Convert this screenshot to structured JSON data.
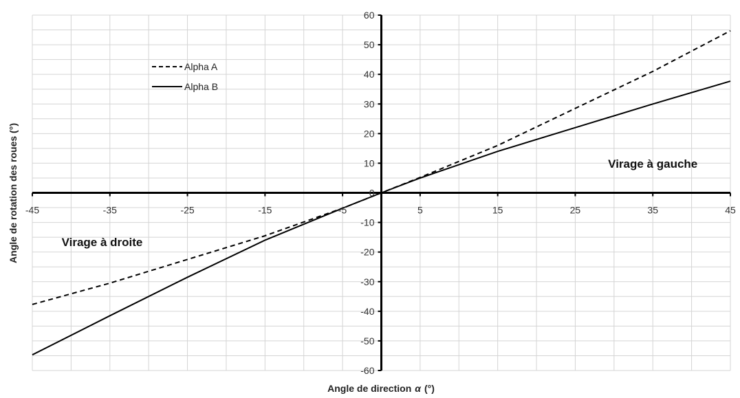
{
  "chart_data": {
    "type": "line",
    "title": "",
    "xlabel": "Angle de direction",
    "xlabel_symbol": "α",
    "xlabel_unit": "(°)",
    "ylabel": "Angle de rotation des roues (°)",
    "xlim": [
      -45,
      45
    ],
    "ylim": [
      -60,
      60
    ],
    "x_ticks": [
      -45,
      -35,
      -25,
      -15,
      -5,
      5,
      15,
      25,
      35,
      45
    ],
    "y_ticks": [
      -60,
      -50,
      -40,
      -30,
      -20,
      -10,
      0,
      10,
      20,
      30,
      40,
      50,
      60
    ],
    "grid": true,
    "legend_position": "top-left",
    "annotations": [
      {
        "text": "Virage à gauche",
        "x": 35,
        "y": 8.5
      },
      {
        "text": "Virage à droite",
        "x": -36,
        "y": -18
      }
    ],
    "series": [
      {
        "name": "Alpha A",
        "style": "dashed",
        "color": "#000000",
        "x": [
          -45,
          -35,
          -25,
          -15,
          -5,
          0,
          5,
          15,
          25,
          35,
          45
        ],
        "y": [
          -37.7,
          -30.5,
          -22.5,
          -14.5,
          -5.2,
          0,
          5.2,
          16,
          28.5,
          41,
          54.7
        ]
      },
      {
        "name": "Alpha B",
        "style": "solid",
        "color": "#000000",
        "x": [
          -45,
          -35,
          -25,
          -15,
          -5,
          0,
          5,
          15,
          25,
          35,
          45
        ],
        "y": [
          -54.7,
          -41.5,
          -28.5,
          -16,
          -5.2,
          0,
          5,
          14,
          22,
          30,
          37.7
        ]
      }
    ]
  }
}
